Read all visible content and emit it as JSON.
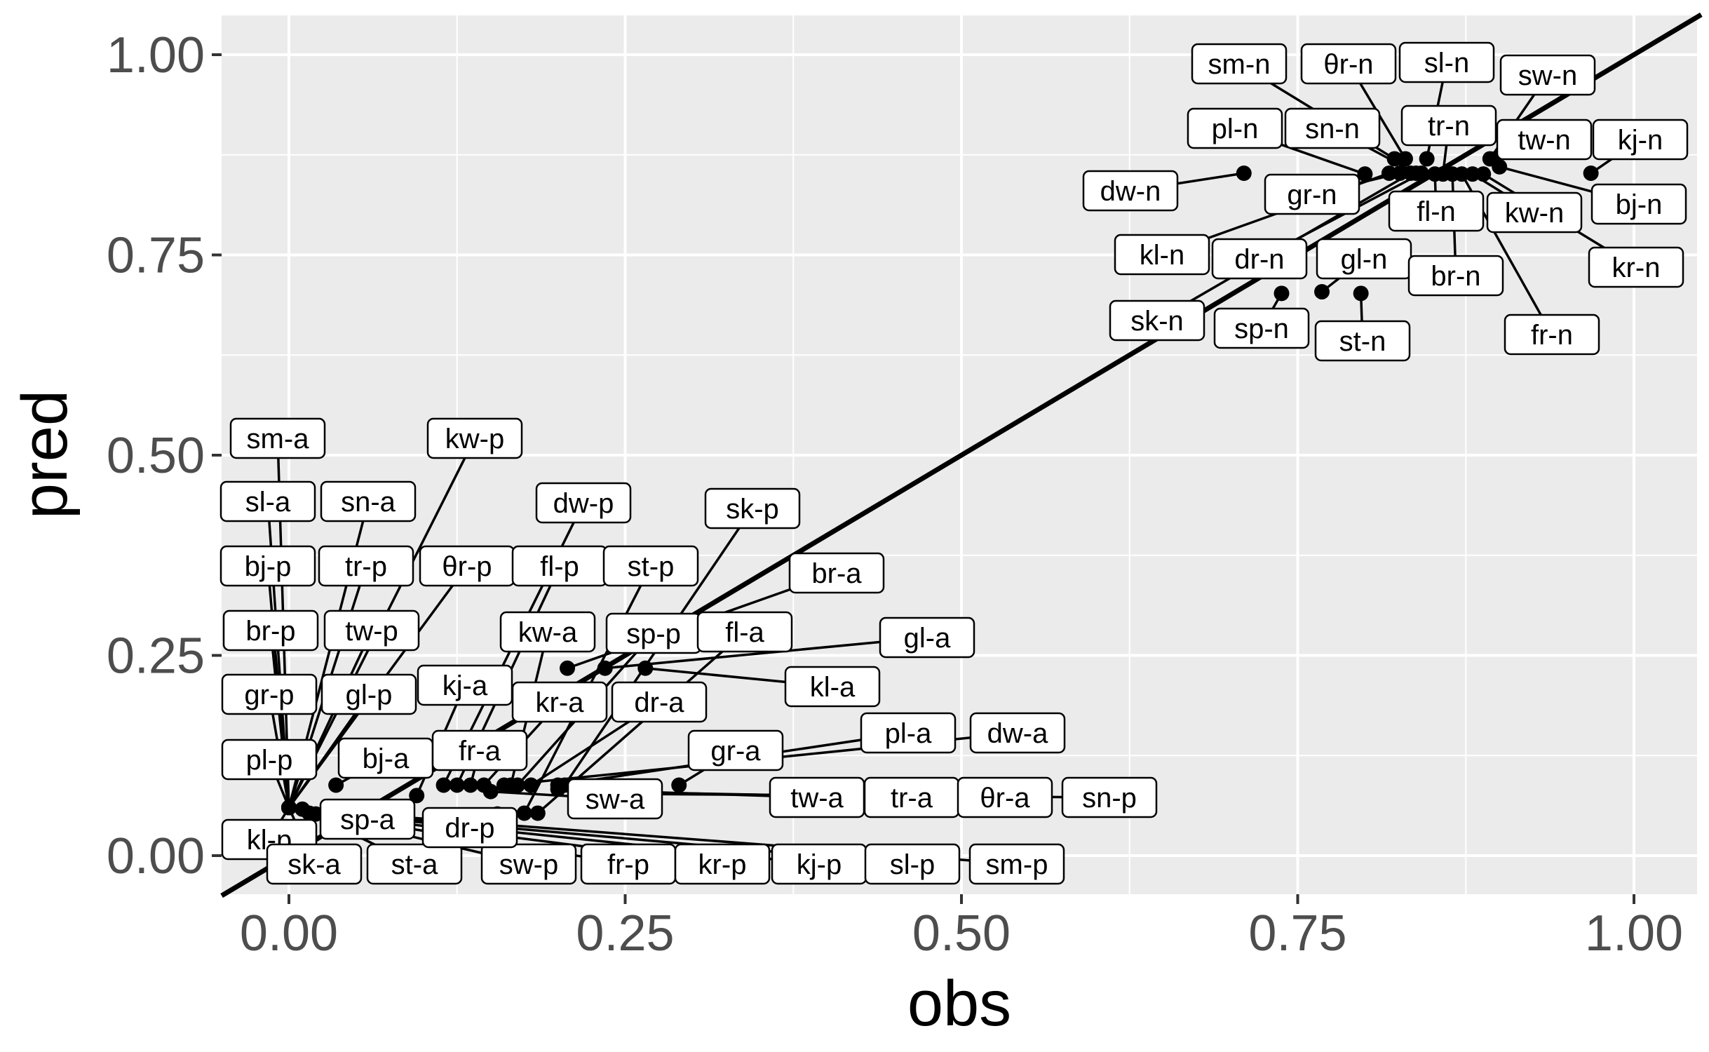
{
  "chart_data": {
    "type": "scatter",
    "xlabel": "obs",
    "ylabel": "pred",
    "xlim": [
      -0.05,
      1.05
    ],
    "ylim": [
      -0.05,
      1.05
    ],
    "x_ticks": [
      "0.00",
      "0.25",
      "0.50",
      "0.75",
      "1.00"
    ],
    "y_ticks": [
      "0.00",
      "0.25",
      "0.50",
      "0.75",
      "1.00"
    ],
    "grid": true,
    "reference_line": {
      "type": "identity",
      "slope": 1,
      "intercept": 0
    },
    "points": [
      {
        "label": "dw-n",
        "x": 0.71,
        "y": 0.852
      },
      {
        "label": "sp-n",
        "x": 0.738,
        "y": 0.702
      },
      {
        "label": "gl-n",
        "x": 0.768,
        "y": 0.704
      },
      {
        "label": "st-n",
        "x": 0.797,
        "y": 0.702
      },
      {
        "label": "pl-n",
        "x": 0.8,
        "y": 0.851
      },
      {
        "label": "kl-n",
        "x": 0.818,
        "y": 0.852
      },
      {
        "label": "sm-n",
        "x": 0.822,
        "y": 0.87
      },
      {
        "label": "gr-n",
        "x": 0.826,
        "y": 0.852
      },
      {
        "label": "θr-n",
        "x": 0.83,
        "y": 0.87
      },
      {
        "label": "sk-n",
        "x": 0.834,
        "y": 0.852
      },
      {
        "label": "sn-n",
        "x": 0.838,
        "y": 0.852
      },
      {
        "label": "dr-n",
        "x": 0.842,
        "y": 0.852
      },
      {
        "label": "sl-n",
        "x": 0.846,
        "y": 0.87
      },
      {
        "label": "fl-n",
        "x": 0.852,
        "y": 0.851
      },
      {
        "label": "tr-n",
        "x": 0.858,
        "y": 0.851
      },
      {
        "label": "br-n",
        "x": 0.865,
        "y": 0.851
      },
      {
        "label": "fr-n",
        "x": 0.872,
        "y": 0.851
      },
      {
        "label": "kw-n",
        "x": 0.88,
        "y": 0.851
      },
      {
        "label": "kr-n",
        "x": 0.888,
        "y": 0.851
      },
      {
        "label": "sw-n",
        "x": 0.893,
        "y": 0.87
      },
      {
        "label": "tw-n",
        "x": 0.897,
        "y": 0.87
      },
      {
        "label": "bj-n",
        "x": 0.9,
        "y": 0.86
      },
      {
        "label": "kj-n",
        "x": 0.968,
        "y": 0.852
      },
      {
        "label": "sm-a",
        "x": 0.0,
        "y": 0.06
      },
      {
        "label": "sl-a",
        "x": 0.0,
        "y": 0.06
      },
      {
        "label": "bj-p",
        "x": 0.0,
        "y": 0.06
      },
      {
        "label": "br-p",
        "x": 0.0,
        "y": 0.06
      },
      {
        "label": "gr-p",
        "x": 0.0,
        "y": 0.06
      },
      {
        "label": "pl-p",
        "x": 0.0,
        "y": 0.06
      },
      {
        "label": "kl-p",
        "x": 0.0,
        "y": 0.06
      },
      {
        "label": "sk-a",
        "x": 0.0,
        "y": 0.06
      },
      {
        "label": "sn-a",
        "x": 0.0,
        "y": 0.06
      },
      {
        "label": "tr-p",
        "x": 0.0,
        "y": 0.06
      },
      {
        "label": "tw-p",
        "x": 0.0,
        "y": 0.06
      },
      {
        "label": "gl-p",
        "x": 0.0,
        "y": 0.06
      },
      {
        "label": "kw-p",
        "x": 0.0,
        "y": 0.06
      },
      {
        "label": "θr-p",
        "x": 0.0,
        "y": 0.06
      },
      {
        "label": "sp-a",
        "x": 0.015,
        "y": 0.053
      },
      {
        "label": "st-a",
        "x": 0.01,
        "y": 0.058
      },
      {
        "label": "bj-a",
        "x": 0.035,
        "y": 0.088
      },
      {
        "label": "sw-p",
        "x": 0.02,
        "y": 0.052
      },
      {
        "label": "fr-p",
        "x": 0.03,
        "y": 0.05
      },
      {
        "label": "kr-p",
        "x": 0.04,
        "y": 0.05
      },
      {
        "label": "kj-p",
        "x": 0.05,
        "y": 0.05
      },
      {
        "label": "sl-p",
        "x": 0.06,
        "y": 0.05
      },
      {
        "label": "sm-p",
        "x": 0.07,
        "y": 0.05
      },
      {
        "label": "kj-a",
        "x": 0.095,
        "y": 0.075
      },
      {
        "label": "dw-p",
        "x": 0.115,
        "y": 0.088
      },
      {
        "label": "fl-p",
        "x": 0.125,
        "y": 0.088
      },
      {
        "label": "fr-a",
        "x": 0.135,
        "y": 0.088
      },
      {
        "label": "kr-a",
        "x": 0.145,
        "y": 0.088
      },
      {
        "label": "dr-p",
        "x": 0.155,
        "y": 0.052
      },
      {
        "label": "kw-a",
        "x": 0.165,
        "y": 0.088
      },
      {
        "label": "sp-p",
        "x": 0.17,
        "y": 0.088
      },
      {
        "label": "st-p",
        "x": 0.175,
        "y": 0.053
      },
      {
        "label": "dr-a",
        "x": 0.18,
        "y": 0.088
      },
      {
        "label": "fl-a",
        "x": 0.185,
        "y": 0.053
      },
      {
        "label": "sk-p",
        "x": 0.205,
        "y": 0.088
      },
      {
        "label": "br-a",
        "x": 0.207,
        "y": 0.234
      },
      {
        "label": "gl-a",
        "x": 0.235,
        "y": 0.234
      },
      {
        "label": "kl-a",
        "x": 0.265,
        "y": 0.234
      },
      {
        "label": "gr-a",
        "x": 0.29,
        "y": 0.088
      },
      {
        "label": "pl-a",
        "x": 0.2,
        "y": 0.088
      },
      {
        "label": "dw-a",
        "x": 0.16,
        "y": 0.088
      },
      {
        "label": "sw-a",
        "x": 0.15,
        "y": 0.08
      },
      {
        "label": "tw-a",
        "x": 0.2,
        "y": 0.083
      },
      {
        "label": "tr-a",
        "x": 0.22,
        "y": 0.08
      },
      {
        "label": "θr-a",
        "x": 0.24,
        "y": 0.078
      },
      {
        "label": "sn-p",
        "x": 0.26,
        "y": 0.077
      }
    ]
  }
}
